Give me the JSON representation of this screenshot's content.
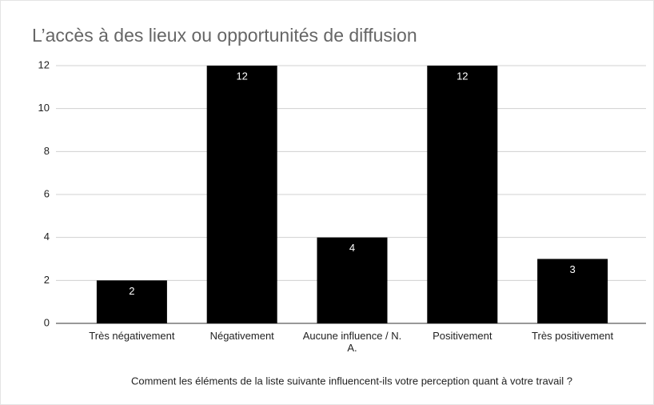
{
  "chart_data": {
    "type": "bar",
    "title": "L’accès à des lieux ou opportunités de diffusion",
    "x_label": "Comment les éléments de la liste suivante influencent-ils votre perception quant à votre travail ?",
    "categories": [
      "Très négativement",
      "Négativement",
      "Aucune influence / N. A.",
      "Positivement",
      "Très positivement"
    ],
    "values": [
      2,
      12,
      4,
      12,
      3
    ],
    "color": "#000000",
    "ylim": [
      0,
      12
    ],
    "yticks": [
      0,
      2,
      4,
      6,
      8,
      10,
      12
    ],
    "grid": true
  }
}
